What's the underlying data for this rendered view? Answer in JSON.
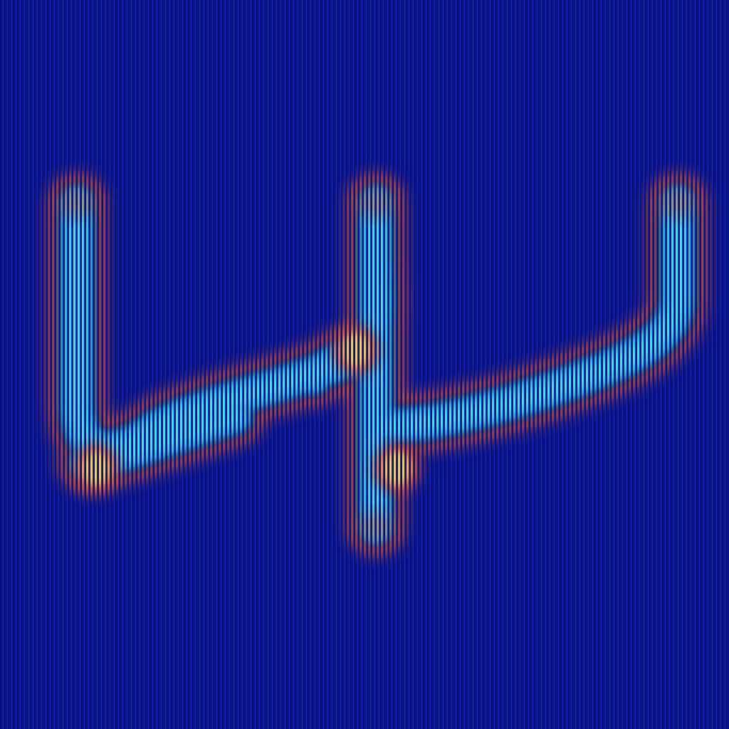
{
  "image": {
    "description_free": true,
    "palette": {
      "background": "#08148c",
      "grid_line": "#1a2ab8",
      "cool": "#19c6e6",
      "cyan_core": "#2ff0ff",
      "warm": "#ff5a10",
      "hot": "#ffb000",
      "hot_core": "#ffd23a"
    },
    "colormap": "jet-like",
    "pattern": "vertical-stripe-interference"
  }
}
